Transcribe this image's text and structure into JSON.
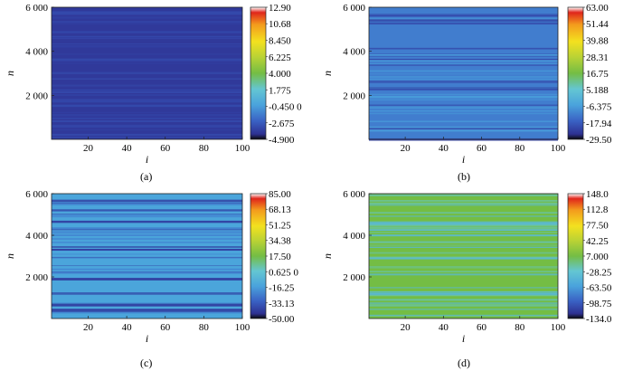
{
  "panels": [
    {
      "caption": "(a)"
    },
    {
      "caption": "(b)"
    },
    {
      "caption": "(c)"
    },
    {
      "caption": "(d)"
    }
  ],
  "chart_data": [
    {
      "type": "heatmap",
      "xlabel": "i",
      "ylabel": "n",
      "xlim": [
        1,
        100
      ],
      "ylim": [
        1,
        6000
      ],
      "x_ticks": [
        20,
        40,
        60,
        80,
        100
      ],
      "x_tick_labels": [
        "20",
        "40",
        "60",
        "80",
        "100"
      ],
      "y_ticks": [
        2000,
        4000,
        6000
      ],
      "y_tick_labels": [
        "2 000",
        "4 000",
        "6 000"
      ],
      "colorbar_range": [
        -4.9,
        12.9
      ],
      "colorbar_ticks": [
        12.9,
        10.68,
        8.45,
        6.225,
        4.0,
        1.775,
        -0.45,
        -2.675,
        -4.9
      ],
      "colorbar_labels": [
        "12.90",
        "10.68",
        "8.450",
        "6.225",
        "4.000",
        "1.775",
        "-0.450 0",
        "-2.675",
        "-4.900"
      ],
      "dominant_value": -3.9,
      "stripe_values": [
        -3.3,
        -3.6
      ]
    },
    {
      "type": "heatmap",
      "xlabel": "i",
      "ylabel": "n",
      "xlim": [
        1,
        100
      ],
      "ylim": [
        1,
        6000
      ],
      "x_ticks": [
        20,
        40,
        60,
        80,
        100
      ],
      "x_tick_labels": [
        "20",
        "40",
        "60",
        "80",
        "100"
      ],
      "y_ticks": [
        2000,
        4000,
        6000
      ],
      "y_tick_labels": [
        "2 000",
        "4 000",
        "6 000"
      ],
      "colorbar_range": [
        -29.5,
        63.0
      ],
      "colorbar_ticks": [
        63.0,
        51.44,
        39.88,
        28.31,
        16.75,
        5.188,
        -6.375,
        -17.94,
        -29.5
      ],
      "colorbar_labels": [
        "63.00",
        "51.44",
        "39.88",
        "28.31",
        "16.75",
        "5.188",
        "-6.375",
        "-17.94",
        "-29.50"
      ],
      "dominant_value": -12,
      "stripe_values": [
        -22,
        -7
      ]
    },
    {
      "type": "heatmap",
      "xlabel": "i",
      "ylabel": "n",
      "xlim": [
        1,
        100
      ],
      "ylim": [
        1,
        6000
      ],
      "x_ticks": [
        20,
        40,
        60,
        80,
        100
      ],
      "x_tick_labels": [
        "20",
        "40",
        "60",
        "80",
        "100"
      ],
      "y_ticks": [
        2000,
        4000,
        6000
      ],
      "y_tick_labels": [
        "2 000",
        "4 000",
        "6 000"
      ],
      "colorbar_range": [
        -50.0,
        85.0
      ],
      "colorbar_ticks": [
        85.0,
        68.13,
        51.25,
        34.38,
        17.5,
        0.625,
        -16.25,
        -33.13,
        -50.0
      ],
      "colorbar_labels": [
        "85.00",
        "68.13",
        "51.25",
        "34.38",
        "17.50",
        "0.625 0",
        "-16.25",
        "-33.13",
        "-50.00"
      ],
      "dominant_value": -14,
      "stripe_values": [
        -40,
        -22
      ]
    },
    {
      "type": "heatmap",
      "xlabel": "i",
      "ylabel": "n",
      "xlim": [
        1,
        100
      ],
      "ylim": [
        1,
        6000
      ],
      "x_ticks": [
        20,
        40,
        60,
        80,
        100
      ],
      "x_tick_labels": [
        "20",
        "40",
        "60",
        "80",
        "100"
      ],
      "y_ticks": [
        2000,
        4000,
        6000
      ],
      "y_tick_labels": [
        "2 000",
        "4 000",
        "6 000"
      ],
      "colorbar_range": [
        -134.0,
        148.0
      ],
      "colorbar_ticks": [
        148.0,
        112.8,
        77.5,
        42.25,
        7.0,
        -28.25,
        -63.5,
        -98.75,
        -134.0
      ],
      "colorbar_labels": [
        "148.0",
        "112.8",
        "77.50",
        "42.25",
        "7.000",
        "-28.25",
        "-63.50",
        "-98.75",
        "-134.0"
      ],
      "dominant_value": 7,
      "stripe_values": [
        -40,
        -15
      ]
    }
  ]
}
